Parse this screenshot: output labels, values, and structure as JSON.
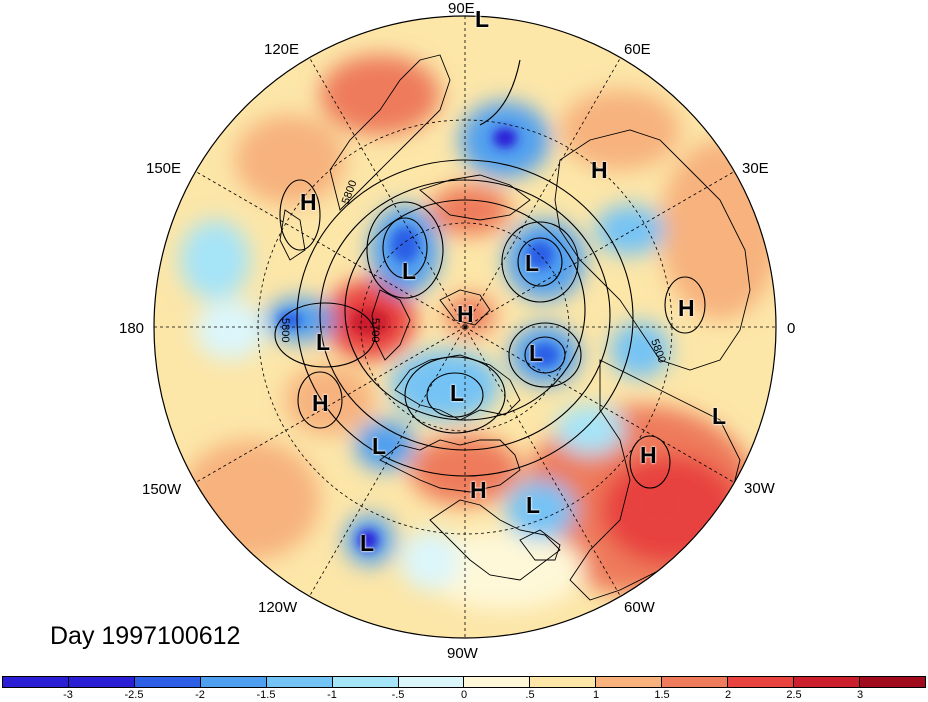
{
  "map": {
    "lon_labels": {
      "e90": "90E",
      "e60": "60E",
      "e30": "30E",
      "zero": "0",
      "w30": "30W",
      "w60": "60W",
      "w90": "90W",
      "w120": "120W",
      "w150": "150W",
      "dateline": "180",
      "e150": "150E",
      "e120": "120E"
    },
    "contour_labels": [
      "5800",
      "5700",
      "5800",
      "5800"
    ],
    "pressure_centers": [
      {
        "type": "L",
        "text": "L"
      },
      {
        "type": "H",
        "text": "H"
      },
      {
        "type": "L",
        "text": "L"
      },
      {
        "type": "H",
        "text": "H"
      },
      {
        "type": "L",
        "text": "L"
      },
      {
        "type": "L",
        "text": "L"
      },
      {
        "type": "H",
        "text": "H"
      },
      {
        "type": "H",
        "text": "H"
      },
      {
        "type": "L",
        "text": "L"
      },
      {
        "type": "L",
        "text": "L"
      },
      {
        "type": "H",
        "text": "H"
      },
      {
        "type": "L",
        "text": "L"
      },
      {
        "type": "L",
        "text": "L"
      },
      {
        "type": "H",
        "text": "H"
      },
      {
        "type": "H",
        "text": "H"
      },
      {
        "type": "L",
        "text": "L"
      },
      {
        "type": "L",
        "text": "L"
      }
    ]
  },
  "title": "Day 1997100612",
  "colorbar": {
    "colors": [
      "#2b1fd6",
      "#2c5ee6",
      "#4f9ff0",
      "#74c3f5",
      "#a6e4f8",
      "#dbf6fb",
      "#fef8d8",
      "#fce6a8",
      "#f7b27e",
      "#ee7b5c",
      "#e8433f",
      "#cc1f2e",
      "#a00b1e"
    ],
    "labels": [
      "-3",
      "-2.5",
      "-2",
      "-1.5",
      "-1",
      "-.5",
      "0",
      ".5",
      "1",
      "1.5",
      "2",
      "2.5",
      "3"
    ]
  }
}
